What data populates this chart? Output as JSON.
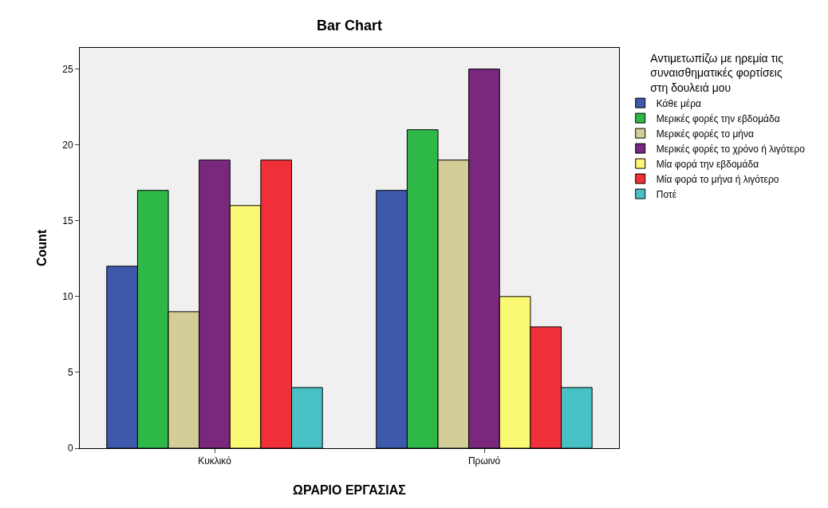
{
  "chart_data": {
    "type": "bar",
    "title": "Bar Chart",
    "xlabel": "ΩΡΑΡΙΟ ΕΡΓΑΣΙΑΣ",
    "ylabel": "Count",
    "legend_title": "Αντιμετωπίζω με ηρεμία τις συναισθηματικές φορτίσεις στη δουλειά μου",
    "categories": [
      "Κυκλικό",
      "Πρωινό"
    ],
    "series": [
      {
        "name": "Κάθε μέρα",
        "color": "#3e58ac",
        "values": [
          12,
          17
        ]
      },
      {
        "name": "Μερικές φορές την εβδομάδα",
        "color": "#2eb848",
        "values": [
          17,
          21
        ]
      },
      {
        "name": "Μερικές φορές το μήνα",
        "color": "#d3ce97",
        "values": [
          9,
          19
        ]
      },
      {
        "name": "Μερικές φορές το χρόνο ή λιγότερο",
        "color": "#79287e",
        "values": [
          19,
          25
        ]
      },
      {
        "name": "Μία φορά την εβδομάδα",
        "color": "#fbf873",
        "values": [
          16,
          10
        ]
      },
      {
        "name": "Μία φορά το μήνα ή λιγότερο",
        "color": "#ef3038",
        "values": [
          19,
          8
        ]
      },
      {
        "name": "Ποτέ",
        "color": "#48c1c6",
        "values": [
          4,
          4
        ]
      }
    ],
    "ylim": [
      0,
      26.4
    ],
    "yticks": [
      0,
      5,
      10,
      15,
      20,
      25
    ],
    "grid": false,
    "legend": "top right"
  }
}
